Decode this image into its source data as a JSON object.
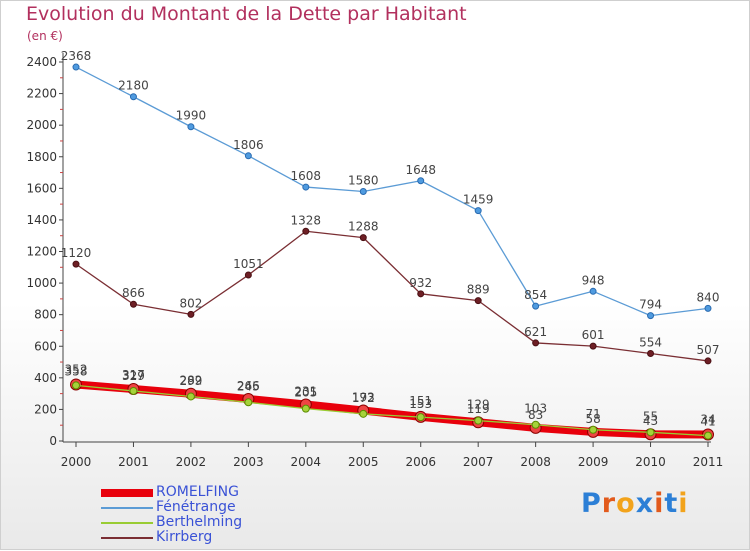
{
  "chart_data": {
    "type": "line",
    "title": "Evolution du Montant de la Dette par Habitant",
    "unit_label": "(en €)",
    "x": [
      "2000",
      "2001",
      "2002",
      "2003",
      "2004",
      "2005",
      "2006",
      "2007",
      "2008",
      "2009",
      "2010",
      "2011"
    ],
    "ylim": [
      0,
      2400
    ],
    "yticks": [
      0,
      200,
      400,
      600,
      800,
      1000,
      1200,
      1400,
      1600,
      1800,
      2000,
      2200,
      2400
    ],
    "grid": false,
    "legend_position": "bottom-left",
    "series": [
      {
        "name": "ROMELFING",
        "color": "#e8000c",
        "values": [
          358,
          329,
          299,
          266,
          231,
          193,
          153,
          119,
          83,
          58,
          43,
          41
        ]
      },
      {
        "name": "Fénétrange",
        "color": "#5b9bd5",
        "values": [
          2368,
          2180,
          1990,
          1806,
          1608,
          1580,
          1648,
          1459,
          854,
          948,
          794,
          840
        ]
      },
      {
        "name": "Berthelming",
        "color": "#99cc33",
        "values": [
          352,
          317,
          282,
          245,
          205,
          172,
          151,
          129,
          103,
          71,
          55,
          34
        ]
      },
      {
        "name": "Kirrberg",
        "color": "#7a2e33",
        "values": [
          1120,
          866,
          802,
          1051,
          1328,
          1288,
          932,
          889,
          621,
          601,
          554,
          507
        ]
      }
    ]
  },
  "logo": {
    "text": "Proxiti",
    "colors": [
      "#2c7fd6",
      "#e25a1c",
      "#f2a31b",
      "#2c7fd6",
      "#e25a1c",
      "#2c7fd6",
      "#f2a31b"
    ]
  }
}
